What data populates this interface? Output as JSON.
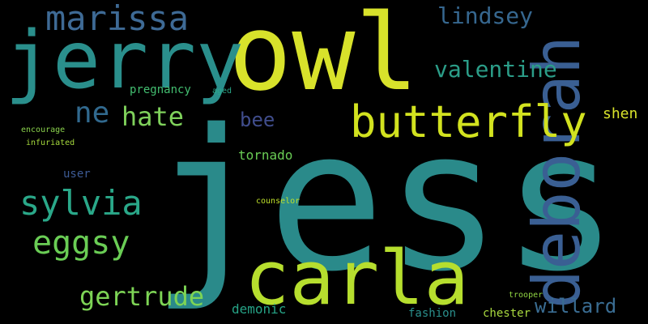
{
  "background": "#000000",
  "words": [
    {
      "text": "jess",
      "color": "#2a8a8a",
      "weight": 240
    },
    {
      "text": "owl",
      "color": "#d8e22b",
      "weight": 130
    },
    {
      "text": "jerry",
      "color": "#2a8f8c",
      "weight": 98
    },
    {
      "text": "carla",
      "color": "#b6de2e",
      "weight": 92
    },
    {
      "text": "deborah",
      "color": "#3a5f93",
      "weight": 80
    },
    {
      "text": "butterfly",
      "color": "#d2e21f",
      "weight": 54
    },
    {
      "text": "marissa",
      "color": "#3e6a95",
      "weight": 42
    },
    {
      "text": "sylvia",
      "color": "#2aa889",
      "weight": 42
    },
    {
      "text": "eggsy",
      "color": "#6acd55",
      "weight": 40
    },
    {
      "text": "gertrude",
      "color": "#7dd455",
      "weight": 32
    },
    {
      "text": "hate",
      "color": "#7fd15b",
      "weight": 32
    },
    {
      "text": "ne",
      "color": "#31698e",
      "weight": 36
    },
    {
      "text": "lindsey",
      "color": "#36678f",
      "weight": 28
    },
    {
      "text": "valentine",
      "color": "#2b9d88",
      "weight": 28
    },
    {
      "text": "willard",
      "color": "#3a6d93",
      "weight": 24
    },
    {
      "text": "bee",
      "color": "#404d8c",
      "weight": 24
    },
    {
      "text": "shen",
      "color": "#d8e22b",
      "weight": 18
    },
    {
      "text": "tornado",
      "color": "#6acd55",
      "weight": 16
    },
    {
      "text": "demonic",
      "color": "#26a386",
      "weight": 16
    },
    {
      "text": "pregnancy",
      "color": "#43bf71",
      "weight": 14
    },
    {
      "text": "chester",
      "color": "#a9d93f",
      "weight": 14
    },
    {
      "text": "fashion",
      "color": "#2a8f8c",
      "weight": 14
    },
    {
      "text": "user",
      "color": "#3d5b95",
      "weight": 14
    },
    {
      "text": "counselor",
      "color": "#bfe22b",
      "weight": 10
    },
    {
      "text": "encourage",
      "color": "#8ad14c",
      "weight": 10
    },
    {
      "text": "infuriated",
      "color": "#a4d83c",
      "weight": 10
    },
    {
      "text": "trooper",
      "color": "#91d643",
      "weight": 10
    },
    {
      "text": "aged",
      "color": "#2aa889",
      "weight": 10
    }
  ]
}
